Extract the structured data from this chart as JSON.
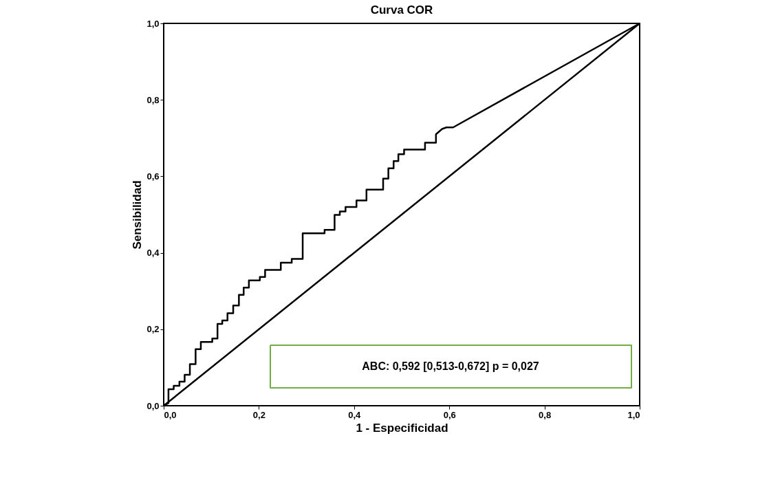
{
  "chart_data": {
    "type": "line",
    "title": "Curva COR",
    "xlabel": "1 - Especificidad",
    "ylabel": "Sensibilidad",
    "xlim": [
      0,
      1
    ],
    "ylim": [
      0,
      1
    ],
    "xticks": [
      {
        "value": 0,
        "label": "0,0"
      },
      {
        "value": 0.2,
        "label": "0,2"
      },
      {
        "value": 0.4,
        "label": "0,4"
      },
      {
        "value": 0.6,
        "label": "0,6"
      },
      {
        "value": 0.8,
        "label": "0,8"
      },
      {
        "value": 1,
        "label": "1,0"
      }
    ],
    "yticks": [
      {
        "value": 0,
        "label": "0,0"
      },
      {
        "value": 0.2,
        "label": "0,2"
      },
      {
        "value": 0.4,
        "label": "0,4"
      },
      {
        "value": 0.6,
        "label": "0,6"
      },
      {
        "value": 0.8,
        "label": "0,8"
      },
      {
        "value": 1,
        "label": "1,0"
      }
    ],
    "grid": false,
    "legend": false,
    "marker": "none",
    "line_style": "solid",
    "series": [
      {
        "color": "#000000",
        "x": [
          0,
          0.01,
          0.01,
          0.021,
          0.021,
          0.033,
          0.033,
          0.044,
          0.044,
          0.055,
          0.055,
          0.067,
          0.067,
          0.078,
          0.078,
          0.102,
          0.102,
          0.113,
          0.113,
          0.123,
          0.123,
          0.134,
          0.134,
          0.146,
          0.146,
          0.158,
          0.158,
          0.168,
          0.168,
          0.179,
          0.179,
          0.202,
          0.202,
          0.213,
          0.213,
          0.246,
          0.246,
          0.269,
          0.269,
          0.292,
          0.292,
          0.338,
          0.338,
          0.359,
          0.359,
          0.37,
          0.37,
          0.382,
          0.382,
          0.405,
          0.405,
          0.426,
          0.426,
          0.461,
          0.461,
          0.472,
          0.472,
          0.483,
          0.483,
          0.493,
          0.493,
          0.505,
          0.505,
          0.549,
          0.549,
          0.572,
          0.572,
          0.585,
          0.594,
          0.608,
          1
        ],
        "values": [
          0,
          0.007,
          0.043,
          0.043,
          0.052,
          0.052,
          0.063,
          0.063,
          0.081,
          0.081,
          0.109,
          0.109,
          0.148,
          0.148,
          0.167,
          0.167,
          0.176,
          0.176,
          0.214,
          0.214,
          0.223,
          0.223,
          0.242,
          0.242,
          0.262,
          0.262,
          0.29,
          0.29,
          0.309,
          0.309,
          0.328,
          0.328,
          0.337,
          0.337,
          0.355,
          0.355,
          0.374,
          0.374,
          0.384,
          0.384,
          0.451,
          0.451,
          0.46,
          0.46,
          0.499,
          0.499,
          0.508,
          0.508,
          0.52,
          0.52,
          0.537,
          0.537,
          0.565,
          0.565,
          0.594,
          0.594,
          0.621,
          0.621,
          0.64,
          0.64,
          0.658,
          0.658,
          0.67,
          0.67,
          0.688,
          0.688,
          0.71,
          0.724,
          0.728,
          0.728,
          1
        ]
      },
      {
        "color": "#000000",
        "x": [
          0,
          1
        ],
        "values": [
          0,
          1
        ]
      }
    ],
    "annotations": [
      "ABC: 0,592 [0,513-0,672] p = 0,027"
    ]
  }
}
